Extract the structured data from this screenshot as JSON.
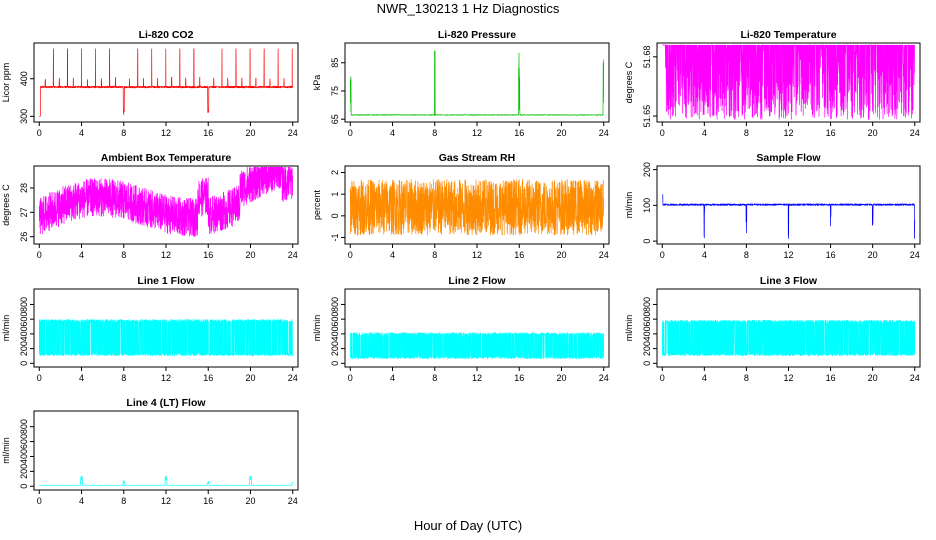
{
  "figure": {
    "title": "NWR_130213  1 Hz Diagnostics",
    "xlabel": "Hour of Day (UTC)"
  },
  "chart_data": [
    {
      "type": "line",
      "title": "Li-820 CO2",
      "ylabel": "Licor ppm",
      "color": "#ff0000",
      "xlim": [
        -0.5,
        24.5
      ],
      "ylim": [
        285,
        495
      ],
      "xticks": [
        0,
        4,
        8,
        12,
        16,
        20,
        24
      ],
      "yticks": [
        300,
        400
      ],
      "series": [
        {
          "profile": "co2",
          "x": [
            0,
            24
          ]
        }
      ]
    },
    {
      "type": "line",
      "title": "Li-820 Pressure",
      "ylabel": "kPa",
      "color": "#00c000",
      "xlim": [
        -0.5,
        24.5
      ],
      "ylim": [
        64,
        92
      ],
      "xticks": [
        0,
        4,
        8,
        12,
        16,
        20,
        24
      ],
      "yticks": [
        65,
        75,
        85
      ],
      "series": [
        {
          "profile": "pressure",
          "x": [
            0,
            24
          ]
        }
      ]
    },
    {
      "type": "line",
      "title": "Li-820 Temperature",
      "ylabel": "degrees C",
      "color": "#ff00ff",
      "xlim": [
        -0.5,
        24.5
      ],
      "ylim": [
        51.647,
        51.687
      ],
      "xticks": [
        0,
        4,
        8,
        12,
        16,
        20,
        24
      ],
      "yticks": [
        51.65,
        51.68
      ],
      "series": [
        {
          "profile": "ltemp",
          "x": [
            0,
            24
          ]
        }
      ]
    },
    {
      "type": "line",
      "title": "Ambient Box Temperature",
      "ylabel": "degrees C",
      "color": "#ff00ff",
      "xlim": [
        -0.5,
        24.5
      ],
      "ylim": [
        25.7,
        28.9
      ],
      "xticks": [
        0,
        4,
        8,
        12,
        16,
        20,
        24
      ],
      "yticks": [
        26.0,
        27.0,
        28.0
      ],
      "series": [
        {
          "profile": "abox",
          "x": [
            0,
            24
          ]
        }
      ]
    },
    {
      "type": "line",
      "title": "Gas Stream RH",
      "ylabel": "percent",
      "color": "#ff8c00",
      "xlim": [
        -0.5,
        24.5
      ],
      "ylim": [
        -1.3,
        2.3
      ],
      "xticks": [
        0,
        4,
        8,
        12,
        16,
        20,
        24
      ],
      "yticks": [
        -1.0,
        0.0,
        1.0,
        2.0
      ],
      "series": [
        {
          "profile": "rh",
          "x": [
            0,
            24
          ]
        }
      ]
    },
    {
      "type": "line",
      "title": "Sample Flow",
      "ylabel": "ml/min",
      "color": "#0000ff",
      "xlim": [
        -0.5,
        24.5
      ],
      "ylim": [
        -8,
        210
      ],
      "xticks": [
        0,
        4,
        8,
        12,
        16,
        20,
        24
      ],
      "yticks": [
        0,
        100,
        200
      ],
      "series": [
        {
          "profile": "sample",
          "x": [
            0,
            24
          ]
        }
      ]
    },
    {
      "type": "line",
      "title": "Line 1 Flow",
      "ylabel": "ml/min",
      "color": "#00ffff",
      "xlim": [
        -0.5,
        24.5
      ],
      "ylim": [
        -50,
        1010
      ],
      "xticks": [
        0,
        4,
        8,
        12,
        16,
        20,
        24
      ],
      "yticks": [
        0,
        200,
        400,
        600,
        800
      ],
      "series": [
        {
          "profile": "l1",
          "x": [
            0,
            24
          ]
        }
      ]
    },
    {
      "type": "line",
      "title": "Line 2 Flow",
      "ylabel": "ml/min",
      "color": "#00ffff",
      "xlim": [
        -0.5,
        24.5
      ],
      "ylim": [
        -50,
        1010
      ],
      "xticks": [
        0,
        4,
        8,
        12,
        16,
        20,
        24
      ],
      "yticks": [
        0,
        200,
        400,
        600,
        800
      ],
      "series": [
        {
          "profile": "l2",
          "x": [
            0,
            24
          ]
        }
      ]
    },
    {
      "type": "line",
      "title": "Line 3 Flow",
      "ylabel": "ml/min",
      "color": "#00ffff",
      "xlim": [
        -0.5,
        24.5
      ],
      "ylim": [
        -50,
        1010
      ],
      "xticks": [
        0,
        4,
        8,
        12,
        16,
        20,
        24
      ],
      "yticks": [
        0,
        200,
        400,
        600,
        800
      ],
      "series": [
        {
          "profile": "l3",
          "x": [
            0,
            24
          ]
        }
      ]
    },
    {
      "type": "line",
      "title": "Line 4 (LT) Flow",
      "ylabel": "ml/min",
      "color": "#00ffff",
      "xlim": [
        -0.5,
        24.5
      ],
      "ylim": [
        -50,
        1010
      ],
      "xticks": [
        0,
        4,
        8,
        12,
        16,
        20,
        24
      ],
      "yticks": [
        0,
        200,
        400,
        600,
        800
      ],
      "series": [
        {
          "profile": "l4",
          "x": [
            0,
            24
          ]
        }
      ]
    }
  ]
}
